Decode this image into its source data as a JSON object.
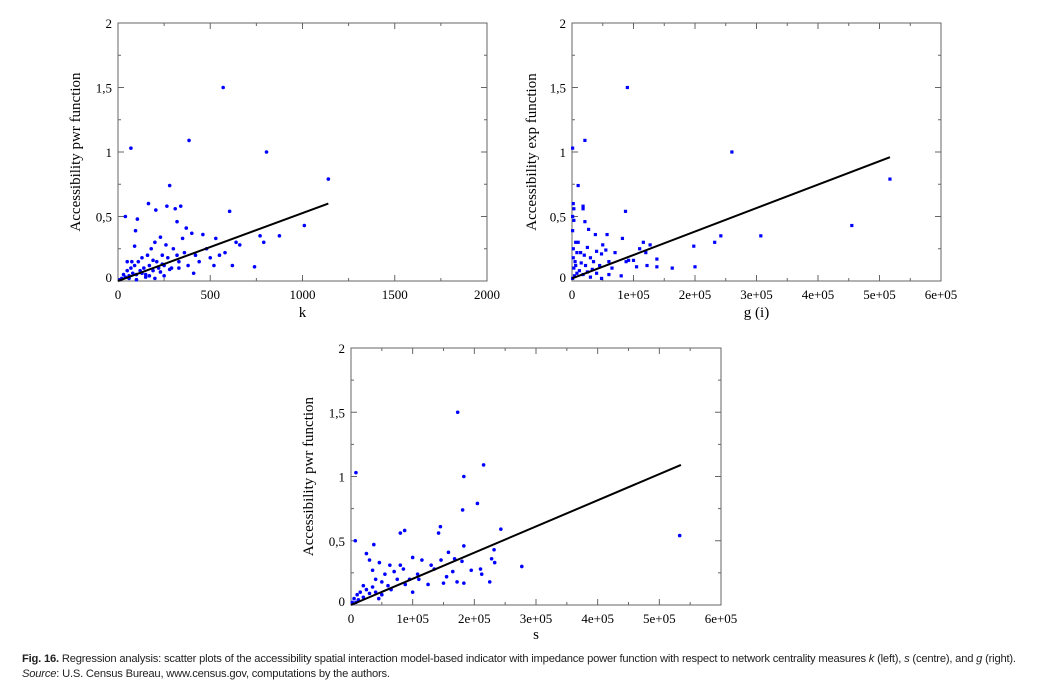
{
  "chart_data": [
    {
      "type": "scatter",
      "id": "left",
      "xlabel": "k",
      "ylabel": "Accessibility pwr function",
      "xlim": [
        0,
        2000
      ],
      "ylim": [
        0,
        2
      ],
      "xticks": [
        0,
        500,
        1000,
        1500,
        2000
      ],
      "xtick_labels": [
        "0",
        "500",
        "1000",
        "1500",
        "2000"
      ],
      "yticks": [
        0,
        0.5,
        1,
        1.5,
        2
      ],
      "ytick_labels": [
        "0",
        "0,5",
        "1",
        "1,5",
        "2"
      ],
      "marker": "circle",
      "color": "#0000ff",
      "regression_line": [
        [
          0,
          0
        ],
        [
          1140,
          0.6
        ]
      ],
      "points": [
        [
          570,
          1.5
        ],
        [
          385,
          1.09
        ],
        [
          70,
          1.03
        ],
        [
          805,
          1.0
        ],
        [
          1140,
          0.79
        ],
        [
          280,
          0.74
        ],
        [
          165,
          0.6
        ],
        [
          265,
          0.58
        ],
        [
          340,
          0.58
        ],
        [
          310,
          0.56
        ],
        [
          205,
          0.55
        ],
        [
          605,
          0.54
        ],
        [
          40,
          0.5
        ],
        [
          105,
          0.48
        ],
        [
          320,
          0.46
        ],
        [
          95,
          0.39
        ],
        [
          370,
          0.41
        ],
        [
          1010,
          0.43
        ],
        [
          875,
          0.35
        ],
        [
          770,
          0.35
        ],
        [
          790,
          0.3
        ],
        [
          740,
          0.11
        ],
        [
          660,
          0.28
        ],
        [
          530,
          0.33
        ],
        [
          20,
          0.02
        ],
        [
          30,
          0.05
        ],
        [
          40,
          0.03
        ],
        [
          50,
          0.08
        ],
        [
          60,
          0.04
        ],
        [
          70,
          0.1
        ],
        [
          80,
          0.06
        ],
        [
          90,
          0.12
        ],
        [
          100,
          0.05
        ],
        [
          110,
          0.15
        ],
        [
          120,
          0.08
        ],
        [
          130,
          0.18
        ],
        [
          140,
          0.1
        ],
        [
          150,
          0.05
        ],
        [
          160,
          0.2
        ],
        [
          170,
          0.12
        ],
        [
          180,
          0.25
        ],
        [
          190,
          0.08
        ],
        [
          200,
          0.3
        ],
        [
          210,
          0.15
        ],
        [
          220,
          0.1
        ],
        [
          230,
          0.34
        ],
        [
          240,
          0.2
        ],
        [
          250,
          0.12
        ],
        [
          260,
          0.28
        ],
        [
          270,
          0.18
        ],
        [
          290,
          0.1
        ],
        [
          300,
          0.25
        ],
        [
          320,
          0.2
        ],
        [
          330,
          0.15
        ],
        [
          350,
          0.33
        ],
        [
          360,
          0.22
        ],
        [
          380,
          0.12
        ],
        [
          400,
          0.37
        ],
        [
          420,
          0.2
        ],
        [
          440,
          0.15
        ],
        [
          460,
          0.36
        ],
        [
          480,
          0.25
        ],
        [
          500,
          0.18
        ],
        [
          520,
          0.12
        ],
        [
          550,
          0.2
        ],
        [
          580,
          0.22
        ],
        [
          620,
          0.12
        ],
        [
          640,
          0.3
        ],
        [
          60,
          0.02
        ],
        [
          100,
          0.01
        ],
        [
          150,
          0.03
        ],
        [
          200,
          0.02
        ],
        [
          250,
          0.04
        ],
        [
          50,
          0.15
        ],
        [
          90,
          0.27
        ],
        [
          75,
          0.15
        ],
        [
          10,
          0.01
        ],
        [
          130,
          0.06
        ],
        [
          170,
          0.04
        ],
        [
          230,
          0.07
        ],
        [
          280,
          0.09
        ],
        [
          330,
          0.1
        ],
        [
          410,
          0.06
        ],
        [
          190,
          0.16
        ],
        [
          240,
          0.13
        ]
      ]
    },
    {
      "type": "scatter",
      "id": "right",
      "xlabel": "g (i)",
      "ylabel": "Accessibility exp function",
      "xlim": [
        0,
        600000
      ],
      "ylim": [
        0,
        2
      ],
      "xticks": [
        0,
        100000,
        200000,
        300000,
        400000,
        500000,
        600000
      ],
      "xtick_labels": [
        "0",
        "1e+05",
        "2e+05",
        "3e+05",
        "4e+05",
        "5e+05",
        "6e+05"
      ],
      "yticks": [
        0,
        0.5,
        1,
        1.5,
        2
      ],
      "ytick_labels": [
        "0",
        "0,5",
        "1",
        "1,5",
        "2"
      ],
      "marker": "square",
      "color": "#0000ff",
      "regression_line": [
        [
          0,
          0.02
        ],
        [
          517000,
          0.96
        ]
      ],
      "points": [
        [
          90000,
          1.5
        ],
        [
          21000,
          1.09
        ],
        [
          1000,
          1.03
        ],
        [
          260000,
          1.0
        ],
        [
          517000,
          0.79
        ],
        [
          10000,
          0.74
        ],
        [
          2000,
          0.6
        ],
        [
          18000,
          0.58
        ],
        [
          18000,
          0.56
        ],
        [
          3000,
          0.56
        ],
        [
          87000,
          0.54
        ],
        [
          1000,
          0.5
        ],
        [
          3000,
          0.47
        ],
        [
          21000,
          0.46
        ],
        [
          455000,
          0.43
        ],
        [
          1000,
          0.39
        ],
        [
          27000,
          0.4
        ],
        [
          38000,
          0.36
        ],
        [
          57000,
          0.36
        ],
        [
          82000,
          0.33
        ],
        [
          307000,
          0.35
        ],
        [
          242000,
          0.35
        ],
        [
          232000,
          0.3
        ],
        [
          198000,
          0.27
        ],
        [
          200000,
          0.11
        ],
        [
          163000,
          0.1
        ],
        [
          138000,
          0.11
        ],
        [
          138000,
          0.17
        ],
        [
          127000,
          0.28
        ],
        [
          120000,
          0.22
        ],
        [
          116000,
          0.3
        ],
        [
          122000,
          0.12
        ],
        [
          100000,
          0.16
        ],
        [
          105000,
          0.11
        ],
        [
          110000,
          0.25
        ],
        [
          88000,
          0.15
        ],
        [
          92000,
          0.16
        ],
        [
          70000,
          0.22
        ],
        [
          65000,
          0.1
        ],
        [
          60000,
          0.15
        ],
        [
          55000,
          0.24
        ],
        [
          50000,
          0.28
        ],
        [
          48000,
          0.21
        ],
        [
          45000,
          0.12
        ],
        [
          40000,
          0.23
        ],
        [
          35000,
          0.15
        ],
        [
          30000,
          0.18
        ],
        [
          25000,
          0.26
        ],
        [
          20000,
          0.2
        ],
        [
          15000,
          0.14
        ],
        [
          10000,
          0.3
        ],
        [
          8000,
          0.22
        ],
        [
          5000,
          0.15
        ],
        [
          3000,
          0.1
        ],
        [
          2000,
          0.25
        ],
        [
          6000,
          0.3
        ],
        [
          12000,
          0.08
        ],
        [
          18000,
          0.05
        ],
        [
          25000,
          0.07
        ],
        [
          30000,
          0.03
        ],
        [
          40000,
          0.06
        ],
        [
          4000,
          0.04
        ],
        [
          1000,
          0.02
        ],
        [
          8000,
          0.06
        ],
        [
          60000,
          0.05
        ],
        [
          80000,
          0.04
        ],
        [
          48000,
          0.02
        ],
        [
          2000,
          0.18
        ],
        [
          6000,
          0.12
        ],
        [
          14000,
          0.22
        ],
        [
          22000,
          0.12
        ],
        [
          33000,
          0.09
        ]
      ]
    },
    {
      "type": "scatter",
      "id": "centre",
      "xlabel": "s",
      "ylabel": "Accessibility pwr function",
      "xlim": [
        0,
        600000
      ],
      "ylim": [
        0,
        2
      ],
      "xticks": [
        0,
        100000,
        200000,
        300000,
        400000,
        500000,
        600000
      ],
      "xtick_labels": [
        "0",
        "1e+05",
        "2e+05",
        "3e+05",
        "4e+05",
        "5e+05",
        "6e+05"
      ],
      "yticks": [
        0,
        0.5,
        1,
        1.5,
        2
      ],
      "ytick_labels": [
        "0",
        "0,5",
        "1",
        "1,5",
        "2"
      ],
      "marker": "circle",
      "color": "#0000ff",
      "regression_line": [
        [
          0,
          0
        ],
        [
          535000,
          1.09
        ]
      ],
      "points": [
        [
          173000,
          1.5
        ],
        [
          8000,
          1.03
        ],
        [
          215000,
          1.09
        ],
        [
          183000,
          1.0
        ],
        [
          205000,
          0.79
        ],
        [
          181000,
          0.74
        ],
        [
          145000,
          0.61
        ],
        [
          243000,
          0.59
        ],
        [
          87000,
          0.58
        ],
        [
          80000,
          0.56
        ],
        [
          142000,
          0.56
        ],
        [
          7000,
          0.5
        ],
        [
          37000,
          0.47
        ],
        [
          183000,
          0.46
        ],
        [
          232000,
          0.43
        ],
        [
          533000,
          0.54
        ],
        [
          277000,
          0.3
        ],
        [
          228000,
          0.36
        ],
        [
          233000,
          0.33
        ],
        [
          225000,
          0.18
        ],
        [
          212000,
          0.24
        ],
        [
          210000,
          0.28
        ],
        [
          195000,
          0.27
        ],
        [
          183000,
          0.17
        ],
        [
          180000,
          0.34
        ],
        [
          172000,
          0.18
        ],
        [
          168000,
          0.36
        ],
        [
          165000,
          0.26
        ],
        [
          158000,
          0.41
        ],
        [
          155000,
          0.22
        ],
        [
          150000,
          0.17
        ],
        [
          146000,
          0.35
        ],
        [
          135000,
          0.28
        ],
        [
          130000,
          0.31
        ],
        [
          125000,
          0.16
        ],
        [
          115000,
          0.35
        ],
        [
          108000,
          0.24
        ],
        [
          100000,
          0.37
        ],
        [
          100000,
          0.1
        ],
        [
          95000,
          0.2
        ],
        [
          85000,
          0.28
        ],
        [
          80000,
          0.31
        ],
        [
          75000,
          0.2
        ],
        [
          70000,
          0.26
        ],
        [
          63000,
          0.31
        ],
        [
          60000,
          0.15
        ],
        [
          55000,
          0.24
        ],
        [
          50000,
          0.18
        ],
        [
          46000,
          0.33
        ],
        [
          40000,
          0.2
        ],
        [
          35000,
          0.27
        ],
        [
          30000,
          0.35
        ],
        [
          25000,
          0.4
        ],
        [
          20000,
          0.15
        ],
        [
          15000,
          0.1
        ],
        [
          10000,
          0.08
        ],
        [
          5000,
          0.05
        ],
        [
          2000,
          0.02
        ],
        [
          12000,
          0.04
        ],
        [
          20000,
          0.06
        ],
        [
          30000,
          0.09
        ],
        [
          40000,
          0.1
        ],
        [
          50000,
          0.08
        ],
        [
          8000,
          0.02
        ],
        [
          45000,
          0.05
        ],
        [
          65000,
          0.12
        ],
        [
          88000,
          0.16
        ],
        [
          110000,
          0.2
        ],
        [
          25000,
          0.12
        ],
        [
          35000,
          0.14
        ]
      ]
    }
  ],
  "caption": {
    "label": "Fig. 16.",
    "text1": " Regression analysis: scatter plots of the accessibility spatial interaction model-based indicator with impedance power function with respect to network centrality measures ",
    "k": "k",
    "text2": " (left), ",
    "s": "s",
    "text3": " (centre), and ",
    "g": "g",
    "text4": " (right). ",
    "source_label": "Source",
    "text5": ": U.S. Census Bureau, www.census.gov, computations by the authors."
  }
}
